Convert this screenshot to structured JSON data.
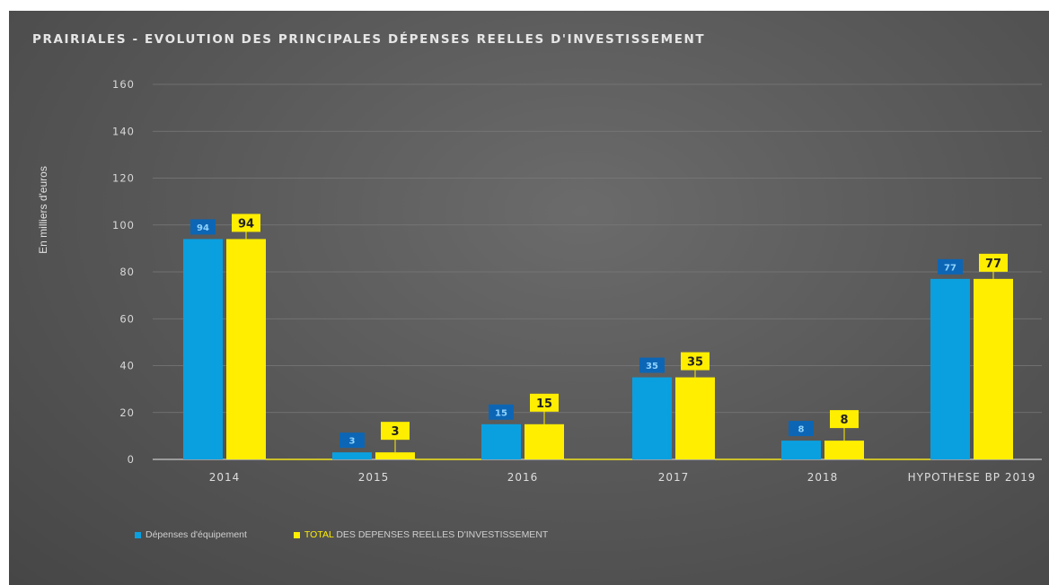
{
  "chart_data": {
    "type": "bar",
    "title": "PRAIRIALES - EVOLUTION DES PRINCIPALES DÉPENSES REELLES D'INVESTISSEMENT",
    "xlabel": "",
    "ylabel": "En milliers d'euros",
    "ylim": [
      0,
      160
    ],
    "yticks": [
      0,
      20,
      40,
      60,
      80,
      100,
      120,
      140,
      160
    ],
    "grid": true,
    "legend_position": "bottom-left",
    "categories": [
      "2014",
      "2015",
      "2016",
      "2017",
      "2018",
      "HYPOTHESE BP 2019"
    ],
    "series": [
      {
        "name": "Dépenses d'équipement",
        "color": "#0aa0e0",
        "label_color": "#0c66b5",
        "values": [
          94,
          3,
          15,
          35,
          8,
          77
        ]
      },
      {
        "name": "TOTAL DES DEPENSES REELLES D'INVESTISSEMENT",
        "color": "#ffee00",
        "label_color": "#ffee00",
        "values": [
          94,
          3,
          15,
          35,
          8,
          77
        ]
      }
    ]
  },
  "legend": {
    "item1": "Dépenses d'équipement",
    "item2_total": "TOTAL",
    "item2_rest": " DES DEPENSES REELLES D'INVESTISSEMENT"
  }
}
